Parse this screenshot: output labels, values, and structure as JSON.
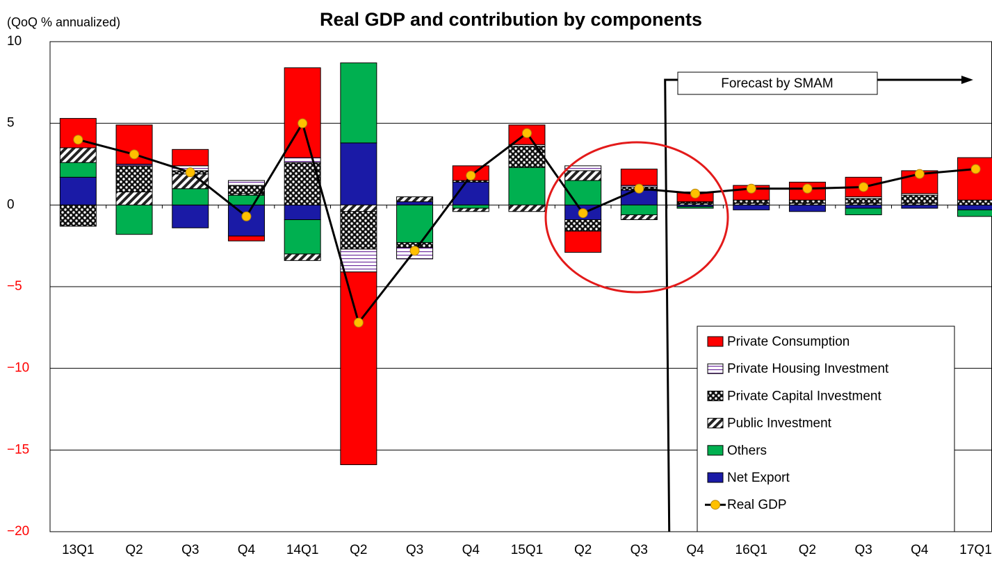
{
  "chart_data": {
    "type": "bar",
    "title": "Real GDP and contribution by components",
    "y_label": "(QoQ % annualized)",
    "annotation": "Forecast by SMAM",
    "categories": [
      "13Q1",
      "Q2",
      "Q3",
      "Q4",
      "14Q1",
      "Q2",
      "Q3",
      "Q4",
      "15Q1",
      "Q2",
      "Q3",
      "Q4",
      "16Q1",
      "Q2",
      "Q3",
      "Q4",
      "17Q1"
    ],
    "ylim": [
      -20,
      10
    ],
    "yticks": [
      {
        "value": -20,
        "label": "−20"
      },
      {
        "value": -15,
        "label": "−15"
      },
      {
        "value": -10,
        "label": "−10"
      },
      {
        "value": -5,
        "label": "−5"
      },
      0,
      5,
      10
    ],
    "grid": true,
    "series": [
      {
        "name": "Net Export",
        "color": "#1a1aa6",
        "values": [
          1.7,
          0,
          -1.4,
          -1.9,
          -0.9,
          3.8,
          0.2,
          1.4,
          0,
          -0.9,
          0.9,
          -0.1,
          -0.3,
          -0.4,
          -0.2,
          -0.2,
          -0.3
        ]
      },
      {
        "name": "Others",
        "color": "#00b050",
        "values": [
          0.9,
          -1.8,
          1.0,
          0.6,
          -2.1,
          4.9,
          -2.3,
          -0.2,
          2.3,
          1.5,
          -0.6,
          -0.1,
          0,
          0,
          -0.4,
          0,
          -0.4
        ]
      },
      {
        "name": "Public Investment",
        "color": "#000000",
        "pattern": "hatch",
        "values": [
          0.9,
          0.8,
          0.9,
          0.1,
          -0.4,
          -0.4,
          0.3,
          -0.2,
          -0.4,
          0.6,
          -0.3,
          0.1,
          0.1,
          0.1,
          0.1,
          0.1,
          0
        ]
      },
      {
        "name": "Private Capital Investment",
        "color": "#000000",
        "pattern": "dots",
        "values": [
          -1.3,
          1.6,
          0.2,
          0.5,
          2.6,
          -2.3,
          -0.3,
          0.1,
          1.3,
          -0.7,
          0.2,
          0.1,
          0.2,
          0.2,
          0.3,
          0.5,
          0.3
        ]
      },
      {
        "name": "Private Housing Investment",
        "color": "#7030a0",
        "pattern": "lines",
        "values": [
          0,
          0.1,
          0.3,
          0.3,
          0.3,
          -1.4,
          -0.7,
          0,
          0.1,
          0.3,
          0.1,
          0,
          0,
          0,
          0.1,
          0.1,
          0
        ]
      },
      {
        "name": "Private Consumption",
        "color": "#ff0000",
        "values": [
          1.8,
          2.4,
          1.0,
          -0.3,
          5.5,
          -11.8,
          0,
          0.9,
          1.2,
          -1.3,
          1.0,
          0.6,
          0.9,
          1.1,
          1.2,
          1.4,
          2.6
        ]
      },
      {
        "name": "Real GDP",
        "type": "line",
        "color": "#000000",
        "marker_color": "#ffc000",
        "values": [
          4.0,
          3.1,
          2.0,
          -0.7,
          5.0,
          -7.2,
          -2.8,
          1.8,
          4.4,
          -0.5,
          1.0,
          0.7,
          1.0,
          1.0,
          1.1,
          1.9,
          2.2
        ]
      }
    ]
  }
}
